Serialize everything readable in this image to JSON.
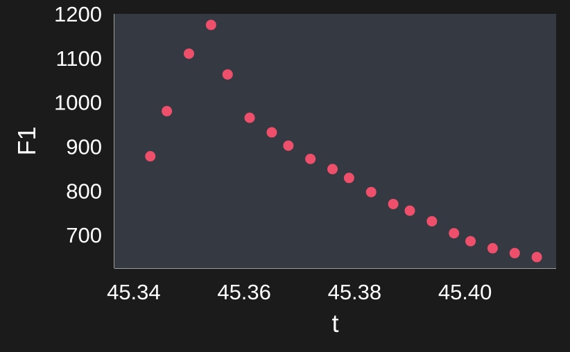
{
  "colors": {
    "page_background": "#1b1b1b",
    "plot_background": "#353942",
    "axis_line": "#a0a0a0",
    "marker": "#ee4f6b",
    "text": "#ffffff"
  },
  "chart_data": {
    "type": "scatter",
    "title": "",
    "xlabel": "t",
    "ylabel": "F1",
    "xlim": [
      45.3365,
      45.4165
    ],
    "ylim": [
      625,
      1200
    ],
    "x_ticks": [
      45.34,
      45.36,
      45.38,
      45.4
    ],
    "x_tick_labels": [
      "45.34",
      "45.36",
      "45.38",
      "45.40"
    ],
    "y_ticks": [
      700,
      800,
      900,
      1000,
      1100,
      1200
    ],
    "y_tick_labels": [
      "700",
      "800",
      "900",
      "1000",
      "1100",
      "1200"
    ],
    "grid": false,
    "legend": "none",
    "series": [
      {
        "x": [
          45.343,
          45.346,
          45.35,
          45.354,
          45.357,
          45.361,
          45.365,
          45.368,
          45.372,
          45.376,
          45.379,
          45.383,
          45.387,
          45.39,
          45.394,
          45.398,
          45.401,
          45.405,
          45.409,
          45.413
        ],
        "y": [
          878,
          980,
          1110,
          1175,
          1063,
          965,
          932,
          902,
          872,
          849,
          829,
          797,
          770,
          755,
          731,
          704,
          686,
          670,
          659,
          650
        ]
      }
    ]
  }
}
